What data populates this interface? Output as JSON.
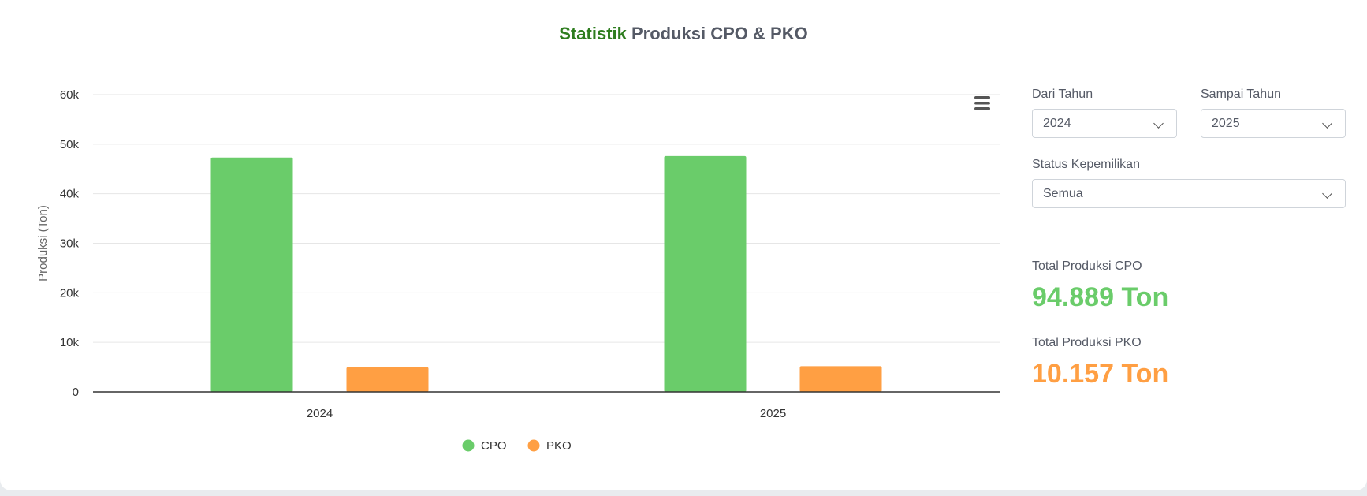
{
  "header": {
    "title_accent": "Statistik",
    "title_rest": " Produksi CPO & PKO"
  },
  "filters": {
    "from_label": "Dari Tahun",
    "from_value": "2024",
    "to_label": "Sampai Tahun",
    "to_value": "2025",
    "status_label": "Status Kepemilikan",
    "status_value": "Semua"
  },
  "totals": {
    "cpo_label": "Total Produksi CPO",
    "cpo_value": "94.889 Ton",
    "pko_label": "Total Produksi PKO",
    "pko_value": "10.157 Ton"
  },
  "colors": {
    "cpo": "#6acc6a",
    "pko": "#ff9f43",
    "accent": "#2e7d1f"
  },
  "chart_data": {
    "type": "bar",
    "title": "Statistik Produksi CPO & PKO",
    "categories": [
      "2024",
      "2025"
    ],
    "series": [
      {
        "name": "CPO",
        "values": [
          47300,
          47600
        ],
        "color": "#6acc6a"
      },
      {
        "name": "PKO",
        "values": [
          5000,
          5200
        ],
        "color": "#ff9f43"
      }
    ],
    "xlabel": "",
    "ylabel": "Produksi (Ton)",
    "ylim": [
      0,
      60000
    ],
    "yticks": [
      0,
      10000,
      20000,
      30000,
      40000,
      50000,
      60000
    ],
    "ytick_labels": [
      "0",
      "10k",
      "20k",
      "30k",
      "40k",
      "50k",
      "60k"
    ],
    "grid": true,
    "legend": "bottom-center"
  }
}
